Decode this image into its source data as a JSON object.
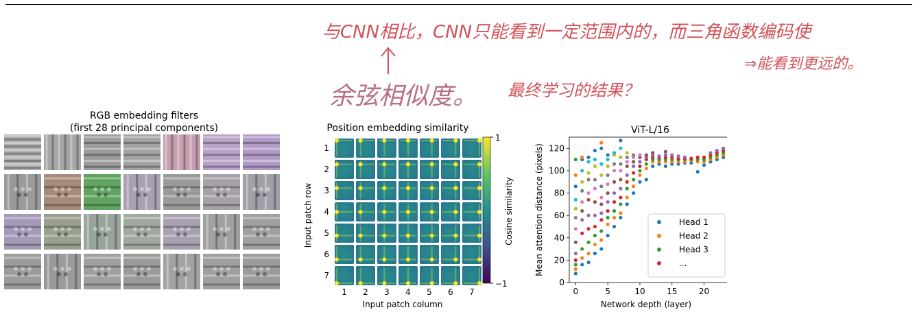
{
  "page": {
    "handwritten_notes": {
      "line1": "与CNN相比，CNN只能看到一定范围内的，而三角函数编码使",
      "line2": "⇒能看到更远的。",
      "line3": "余弦相似度。",
      "line4": "最终学习的结果？"
    }
  },
  "rgb_filters": {
    "title_line1": "RGB embedding filters",
    "title_line2": "(first 28 principal components)",
    "rows": 4,
    "cols": 7
  },
  "chart_data": [
    {
      "type": "heatmap",
      "title": "Position embedding similarity",
      "xlabel": "Input patch column",
      "ylabel": "Input patch row",
      "x_ticks": [
        "1",
        "2",
        "3",
        "4",
        "5",
        "6",
        "7"
      ],
      "y_ticks": [
        "1",
        "2",
        "3",
        "4",
        "5",
        "6",
        "7"
      ],
      "colorbar": {
        "label": "Cosine similarity",
        "min": -1,
        "max": 1,
        "min_label": "−1",
        "max_label": "1"
      },
      "grid": [
        7,
        7
      ]
    },
    {
      "type": "scatter",
      "title": "ViT-L/16",
      "xlabel": "Network depth (layer)",
      "ylabel": "Mean attention distance (pixels)",
      "xlim": [
        -1,
        24
      ],
      "ylim": [
        0,
        130
      ],
      "xticks": [
        0,
        5,
        10,
        15,
        20
      ],
      "yticks": [
        0,
        20,
        40,
        60,
        80,
        100,
        120
      ],
      "legend": {
        "placement": "bottom-right",
        "entries": [
          {
            "name": "Head 1",
            "color": "#1f77b4"
          },
          {
            "name": "Head 2",
            "color": "#ff7f0e"
          },
          {
            "name": "Head 3",
            "color": "#2ca02c"
          },
          {
            "name": "...",
            "color": "#d62728"
          }
        ]
      },
      "palette": [
        "#1f77b4",
        "#ff7f0e",
        "#2ca02c",
        "#d62728",
        "#9467bd",
        "#8c564b",
        "#e377c2",
        "#7f7f7f",
        "#bcbd22",
        "#17becf"
      ],
      "series": [
        {
          "layer": 0,
          "values": [
            8,
            12,
            16,
            20,
            26,
            36,
            48,
            58,
            66,
            74,
            86,
            96,
            110
          ]
        },
        {
          "layer": 1,
          "values": [
            16,
            22,
            30,
            44,
            56,
            64,
            72,
            82,
            90,
            100,
            110,
            112
          ]
        },
        {
          "layer": 2,
          "values": [
            18,
            26,
            36,
            48,
            60,
            74,
            80,
            92,
            98,
            108,
            112
          ]
        },
        {
          "layer": 3,
          "values": [
            26,
            34,
            42,
            50,
            60,
            72,
            84,
            92,
            104,
            110,
            118
          ]
        },
        {
          "layer": 4,
          "values": [
            30,
            38,
            46,
            56,
            62,
            70,
            76,
            86,
            96,
            106,
            120,
            125
          ]
        },
        {
          "layer": 5,
          "values": [
            42,
            52,
            58,
            64,
            72,
            80,
            88,
            96,
            104,
            110,
            114
          ]
        },
        {
          "layer": 6,
          "values": [
            50,
            58,
            64,
            72,
            80,
            90,
            100,
            106,
            114,
            116
          ]
        },
        {
          "layer": 7,
          "values": [
            58,
            62,
            70,
            76,
            84,
            92,
            100,
            106,
            112,
            120,
            127
          ]
        },
        {
          "layer": 8,
          "values": [
            70,
            76,
            84,
            90,
            96,
            104,
            108,
            112,
            116
          ]
        },
        {
          "layer": 9,
          "values": [
            80,
            86,
            92,
            98,
            104,
            108,
            112,
            114
          ]
        },
        {
          "layer": 10,
          "values": [
            90,
            96,
            100,
            104,
            108,
            112,
            114
          ]
        },
        {
          "layer": 11,
          "values": [
            92,
            102,
            106,
            110,
            112,
            114
          ]
        },
        {
          "layer": 12,
          "values": [
            104,
            108,
            110,
            112,
            114,
            116
          ]
        },
        {
          "layer": 13,
          "values": [
            106,
            108,
            110,
            112,
            113
          ]
        },
        {
          "layer": 14,
          "values": [
            104,
            108,
            110,
            112,
            114,
            117
          ]
        },
        {
          "layer": 15,
          "values": [
            106,
            108,
            110,
            112,
            114
          ]
        },
        {
          "layer": 16,
          "values": [
            106,
            108,
            110,
            111,
            113
          ]
        },
        {
          "layer": 17,
          "values": [
            107,
            108,
            110,
            111,
            112
          ]
        },
        {
          "layer": 18,
          "values": [
            107,
            109,
            110,
            111
          ]
        },
        {
          "layer": 19,
          "values": [
            99,
            108,
            110,
            112
          ]
        },
        {
          "layer": 20,
          "values": [
            105,
            108,
            110,
            112
          ]
        },
        {
          "layer": 21,
          "values": [
            108,
            110,
            112,
            114,
            116
          ]
        },
        {
          "layer": 22,
          "values": [
            110,
            112,
            114,
            116,
            118
          ]
        },
        {
          "layer": 23,
          "values": [
            112,
            114,
            116,
            118,
            120
          ]
        }
      ]
    }
  ]
}
